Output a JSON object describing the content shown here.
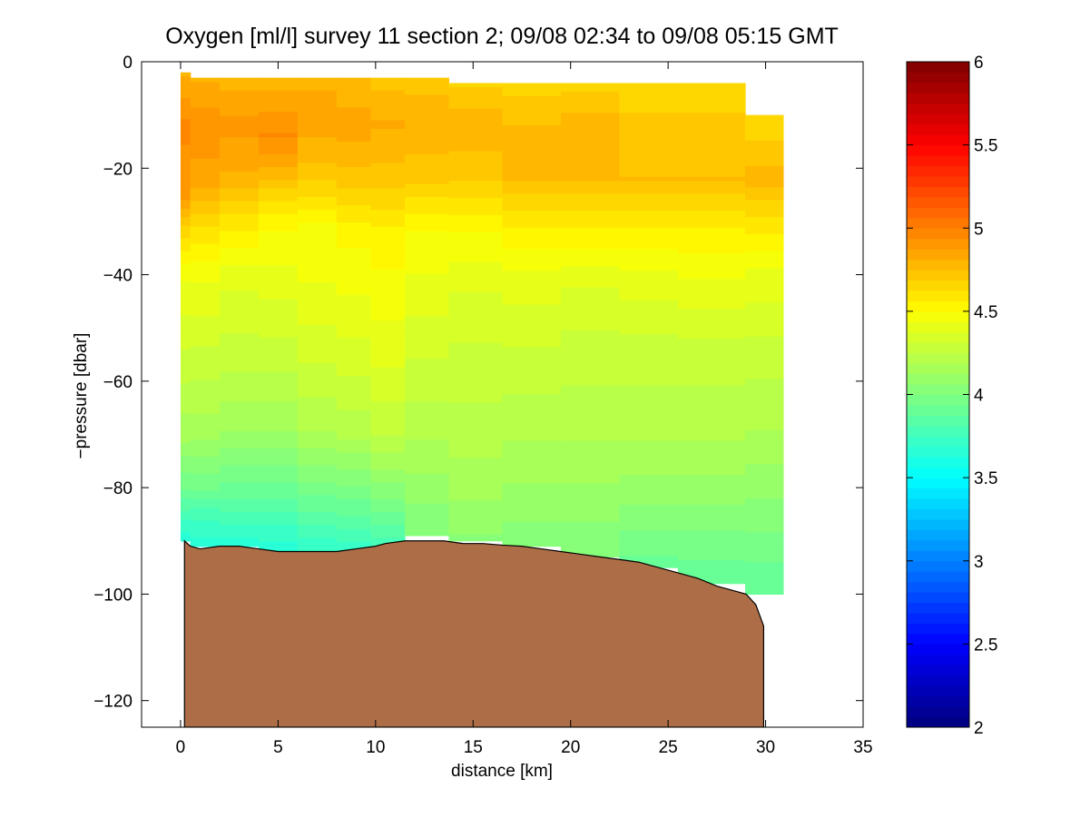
{
  "chart_data": {
    "type": "heatmap",
    "title": "Oxygen [ml/l] survey 11 section 2; 09/08 02:34 to 09/08 05:15 GMT",
    "xlabel": "distance [km]",
    "ylabel": "−pressure [dbar]",
    "xlim": [
      -2,
      35
    ],
    "ylim": [
      -125,
      0
    ],
    "xticks": [
      0,
      5,
      10,
      15,
      20,
      25,
      30,
      35
    ],
    "xtick_labels": [
      "0",
      "5",
      "10",
      "15",
      "20",
      "25",
      "30",
      "35"
    ],
    "yticks": [
      0,
      -20,
      -40,
      -60,
      -80,
      -100,
      -120
    ],
    "ytick_labels": [
      "0",
      "−20",
      "−40",
      "−60",
      "−80",
      "−100",
      "−120"
    ],
    "colorbar": {
      "range": [
        2,
        6
      ],
      "colormap": "jet",
      "ticks": [
        2,
        2.5,
        3,
        3.5,
        4,
        4.5,
        5,
        5.5,
        6
      ],
      "tick_labels": [
        "2",
        "2.5",
        "3",
        "3.5",
        "4",
        "4.5",
        "5",
        "5.5",
        "6"
      ]
    },
    "sections": [
      {
        "x": 0.0,
        "top": -2,
        "bottom": -90,
        "profile": [
          [
            -2,
            4.8
          ],
          [
            -12,
            4.95
          ],
          [
            -25,
            4.9
          ],
          [
            -32,
            4.65
          ],
          [
            -40,
            4.45
          ],
          [
            -55,
            4.3
          ],
          [
            -70,
            4.15
          ],
          [
            -80,
            3.95
          ],
          [
            -86,
            3.75
          ],
          [
            -90,
            3.65
          ]
        ]
      },
      {
        "x": 1.0,
        "top": -3,
        "bottom": -91,
        "profile": [
          [
            -3,
            4.8
          ],
          [
            -12,
            4.92
          ],
          [
            -22,
            4.85
          ],
          [
            -32,
            4.6
          ],
          [
            -40,
            4.45
          ],
          [
            -55,
            4.3
          ],
          [
            -70,
            4.15
          ],
          [
            -80,
            3.95
          ],
          [
            -86,
            3.75
          ],
          [
            -91,
            3.65
          ]
        ]
      },
      {
        "x": 3.0,
        "top": -3,
        "bottom": -91,
        "profile": [
          [
            -3,
            4.78
          ],
          [
            -12,
            4.9
          ],
          [
            -22,
            4.8
          ],
          [
            -32,
            4.55
          ],
          [
            -40,
            4.4
          ],
          [
            -55,
            4.28
          ],
          [
            -70,
            4.12
          ],
          [
            -80,
            3.92
          ],
          [
            -88,
            3.72
          ],
          [
            -91,
            3.65
          ]
        ]
      },
      {
        "x": 5.0,
        "top": -3,
        "bottom": -92,
        "profile": [
          [
            -3,
            4.78
          ],
          [
            -14,
            4.95
          ],
          [
            -22,
            4.75
          ],
          [
            -30,
            4.52
          ],
          [
            -40,
            4.42
          ],
          [
            -55,
            4.28
          ],
          [
            -70,
            4.12
          ],
          [
            -80,
            3.92
          ],
          [
            -88,
            3.72
          ],
          [
            -92,
            3.65
          ]
        ]
      },
      {
        "x": 7.0,
        "top": -3,
        "bottom": -92,
        "profile": [
          [
            -3,
            4.8
          ],
          [
            -12,
            4.85
          ],
          [
            -22,
            4.7
          ],
          [
            -30,
            4.5
          ],
          [
            -40,
            4.45
          ],
          [
            -55,
            4.33
          ],
          [
            -70,
            4.18
          ],
          [
            -80,
            3.98
          ],
          [
            -88,
            3.78
          ],
          [
            -92,
            3.7
          ]
        ]
      },
      {
        "x": 9.0,
        "top": -3,
        "bottom": -92,
        "profile": [
          [
            -3,
            4.75
          ],
          [
            -12,
            4.85
          ],
          [
            -22,
            4.72
          ],
          [
            -32,
            4.52
          ],
          [
            -42,
            4.45
          ],
          [
            -55,
            4.35
          ],
          [
            -70,
            4.2
          ],
          [
            -80,
            4.0
          ],
          [
            -88,
            3.8
          ],
          [
            -92,
            3.72
          ]
        ]
      },
      {
        "x": 10.5,
        "top": -3,
        "bottom": -91,
        "profile": [
          [
            -3,
            4.72
          ],
          [
            -12,
            4.82
          ],
          [
            -22,
            4.72
          ],
          [
            -32,
            4.55
          ],
          [
            -42,
            4.48
          ],
          [
            -55,
            4.4
          ],
          [
            -70,
            4.25
          ],
          [
            -80,
            4.05
          ],
          [
            -88,
            3.85
          ],
          [
            -91,
            3.78
          ]
        ]
      },
      {
        "x": 12.5,
        "top": -3,
        "bottom": -89,
        "profile": [
          [
            -3,
            4.72
          ],
          [
            -12,
            4.8
          ],
          [
            -22,
            4.7
          ],
          [
            -32,
            4.5
          ],
          [
            -42,
            4.42
          ],
          [
            -55,
            4.32
          ],
          [
            -70,
            4.2
          ],
          [
            -80,
            4.1
          ],
          [
            -89,
            4.0
          ]
        ]
      },
      {
        "x": 15.0,
        "top": -4,
        "bottom": -90,
        "profile": [
          [
            -4,
            4.68
          ],
          [
            -12,
            4.8
          ],
          [
            -22,
            4.7
          ],
          [
            -32,
            4.5
          ],
          [
            -42,
            4.38
          ],
          [
            -55,
            4.3
          ],
          [
            -70,
            4.22
          ],
          [
            -80,
            4.15
          ],
          [
            -90,
            4.05
          ]
        ]
      },
      {
        "x": 18.0,
        "top": -4,
        "bottom": -91,
        "profile": [
          [
            -4,
            4.66
          ],
          [
            -12,
            4.75
          ],
          [
            -22,
            4.75
          ],
          [
            -32,
            4.55
          ],
          [
            -42,
            4.4
          ],
          [
            -55,
            4.3
          ],
          [
            -70,
            4.2
          ],
          [
            -80,
            4.12
          ],
          [
            -91,
            4.02
          ]
        ]
      },
      {
        "x": 21.0,
        "top": -4,
        "bottom": -93,
        "profile": [
          [
            -4,
            4.66
          ],
          [
            -12,
            4.78
          ],
          [
            -22,
            4.75
          ],
          [
            -32,
            4.55
          ],
          [
            -42,
            4.38
          ],
          [
            -55,
            4.28
          ],
          [
            -70,
            4.2
          ],
          [
            -80,
            4.12
          ],
          [
            -93,
            4.0
          ]
        ]
      },
      {
        "x": 24.0,
        "top": -4,
        "bottom": -95,
        "profile": [
          [
            -4,
            4.62
          ],
          [
            -12,
            4.72
          ],
          [
            -22,
            4.75
          ],
          [
            -32,
            4.55
          ],
          [
            -42,
            4.4
          ],
          [
            -55,
            4.28
          ],
          [
            -70,
            4.2
          ],
          [
            -80,
            4.1
          ],
          [
            -90,
            3.98
          ],
          [
            -95,
            3.9
          ]
        ]
      },
      {
        "x": 27.0,
        "top": -4,
        "bottom": -98,
        "profile": [
          [
            -4,
            4.62
          ],
          [
            -12,
            4.72
          ],
          [
            -22,
            4.75
          ],
          [
            -32,
            4.55
          ],
          [
            -42,
            4.42
          ],
          [
            -55,
            4.28
          ],
          [
            -70,
            4.2
          ],
          [
            -80,
            4.1
          ],
          [
            -90,
            3.98
          ],
          [
            -98,
            3.88
          ]
        ]
      },
      {
        "x": 30.9,
        "top": -10,
        "bottom": -100,
        "profile": [
          [
            -10,
            4.62
          ],
          [
            -22,
            4.78
          ],
          [
            -30,
            4.6
          ],
          [
            -40,
            4.42
          ],
          [
            -55,
            4.28
          ],
          [
            -70,
            4.18
          ],
          [
            -80,
            4.08
          ],
          [
            -90,
            3.98
          ],
          [
            -100,
            3.88
          ]
        ]
      }
    ],
    "bathymetry": {
      "fill_color": "#ad6e47",
      "points": [
        [
          0.2,
          -90
        ],
        [
          0.5,
          -91
        ],
        [
          1,
          -91.5
        ],
        [
          2,
          -91
        ],
        [
          3,
          -91
        ],
        [
          4,
          -91.5
        ],
        [
          5,
          -92
        ],
        [
          6,
          -92
        ],
        [
          7,
          -92
        ],
        [
          8,
          -92
        ],
        [
          9,
          -91.5
        ],
        [
          10,
          -91
        ],
        [
          10.5,
          -90.5
        ],
        [
          11.5,
          -90
        ],
        [
          12.5,
          -90
        ],
        [
          13.5,
          -90
        ],
        [
          14.5,
          -90.5
        ],
        [
          15.5,
          -90.5
        ],
        [
          16.5,
          -90.8
        ],
        [
          17.5,
          -91
        ],
        [
          18.5,
          -91.5
        ],
        [
          19.5,
          -92
        ],
        [
          20.5,
          -92.5
        ],
        [
          21.5,
          -93
        ],
        [
          22.5,
          -93.5
        ],
        [
          23.5,
          -94
        ],
        [
          24.5,
          -95
        ],
        [
          25.5,
          -96
        ],
        [
          26.5,
          -97
        ],
        [
          27.5,
          -98.5
        ],
        [
          28.5,
          -99.5
        ],
        [
          29,
          -100
        ],
        [
          29.5,
          -102
        ],
        [
          29.9,
          -106
        ],
        [
          29.9,
          -125
        ]
      ]
    }
  }
}
